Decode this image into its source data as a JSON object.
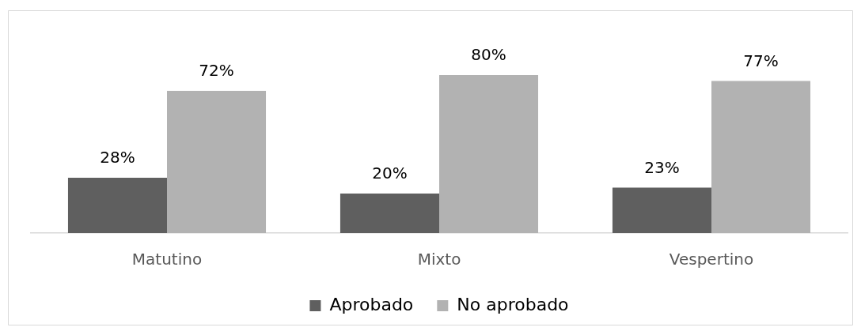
{
  "chart_data": {
    "type": "bar",
    "categories": [
      "Matutino",
      "Mixto",
      "Vespertino"
    ],
    "series": [
      {
        "name": "Aprobado",
        "color": "#5f5f5f",
        "values": [
          28,
          20,
          23
        ],
        "value_labels": [
          "28%",
          "20%",
          "23%"
        ]
      },
      {
        "name": "No aprobado",
        "color": "#b2b2b2",
        "values": [
          72,
          80,
          77
        ],
        "value_labels": [
          "72%",
          "80%",
          "77%"
        ]
      }
    ],
    "legend": "bottom"
  }
}
